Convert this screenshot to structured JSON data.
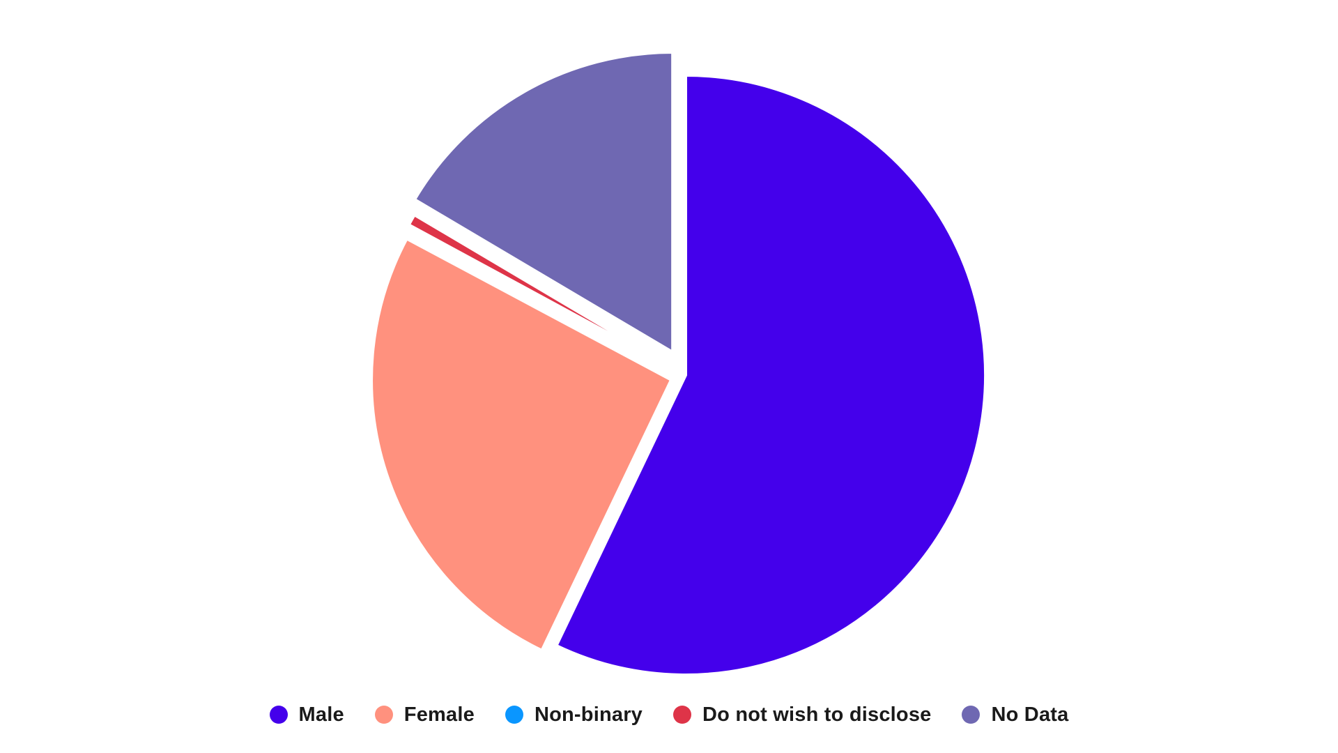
{
  "chart_data": {
    "type": "pie",
    "title": "",
    "start_angle_deg": 0,
    "direction": "clockwise",
    "exploded": true,
    "legend_position": "bottom",
    "slices": [
      {
        "label": "Male",
        "value": 57.1,
        "color": "#4400EB"
      },
      {
        "label": "Female",
        "value": 25.7,
        "color": "#FF917E"
      },
      {
        "label": "Non-binary",
        "value": 0.1,
        "color": "#0A96FF"
      },
      {
        "label": "Do not wish to disclose",
        "value": 0.6,
        "color": "#DE3448"
      },
      {
        "label": "No Data",
        "value": 16.5,
        "color": "#6F68B2"
      }
    ]
  },
  "legend": {
    "items": [
      {
        "label": "Male",
        "color": "#4400EB",
        "icon": "circle"
      },
      {
        "label": "Female",
        "color": "#FF917E",
        "icon": "circle"
      },
      {
        "label": "Non-binary",
        "color": "#0A96FF",
        "icon": "circle"
      },
      {
        "label": "Do not wish to disclose",
        "color": "#DE3448",
        "icon": "circle"
      },
      {
        "label": "No Data",
        "color": "#6F68B2",
        "icon": "circle"
      }
    ]
  }
}
